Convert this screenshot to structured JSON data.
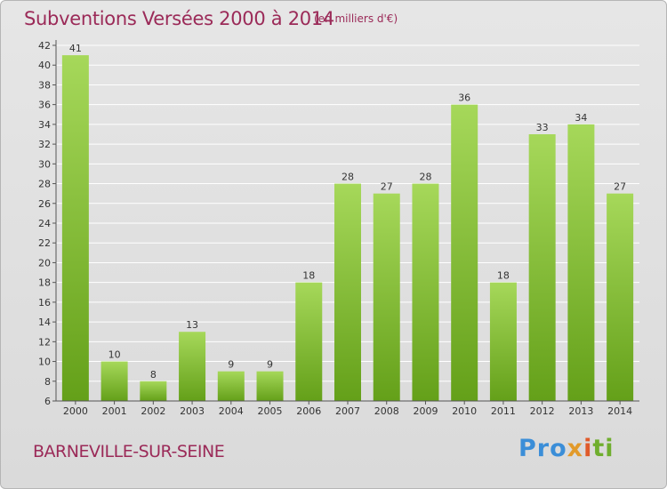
{
  "header": {
    "title": "Subventions Versées 2000 à 2014",
    "unit": "(en milliers d'€)"
  },
  "footer": {
    "city": "BARNEVILLE-SUR-SEINE",
    "logo": {
      "p1": "Pro",
      "p2": "x",
      "p3": "i",
      "p4": "ti"
    }
  },
  "colors": {
    "title": "#9b2a58",
    "bar_light": "#a6d85a",
    "bar_dark": "#64a019",
    "grid": "#ffffff",
    "axis": "#555555"
  },
  "chart_data": {
    "type": "bar",
    "title": "Subventions Versées 2000 à 2014",
    "subtitle": "(en milliers d'€)",
    "categories": [
      "2000",
      "2001",
      "2002",
      "2003",
      "2004",
      "2005",
      "2006",
      "2007",
      "2008",
      "2009",
      "2010",
      "2011",
      "2012",
      "2013",
      "2014"
    ],
    "values": [
      41,
      10,
      8,
      13,
      9,
      9,
      18,
      28,
      27,
      28,
      36,
      18,
      33,
      34,
      27
    ],
    "ylim": [
      6,
      42
    ],
    "yticks": [
      6,
      8,
      10,
      12,
      14,
      16,
      18,
      20,
      22,
      24,
      26,
      28,
      30,
      32,
      34,
      36,
      38,
      40,
      42
    ],
    "grid": true,
    "legend": "none"
  }
}
